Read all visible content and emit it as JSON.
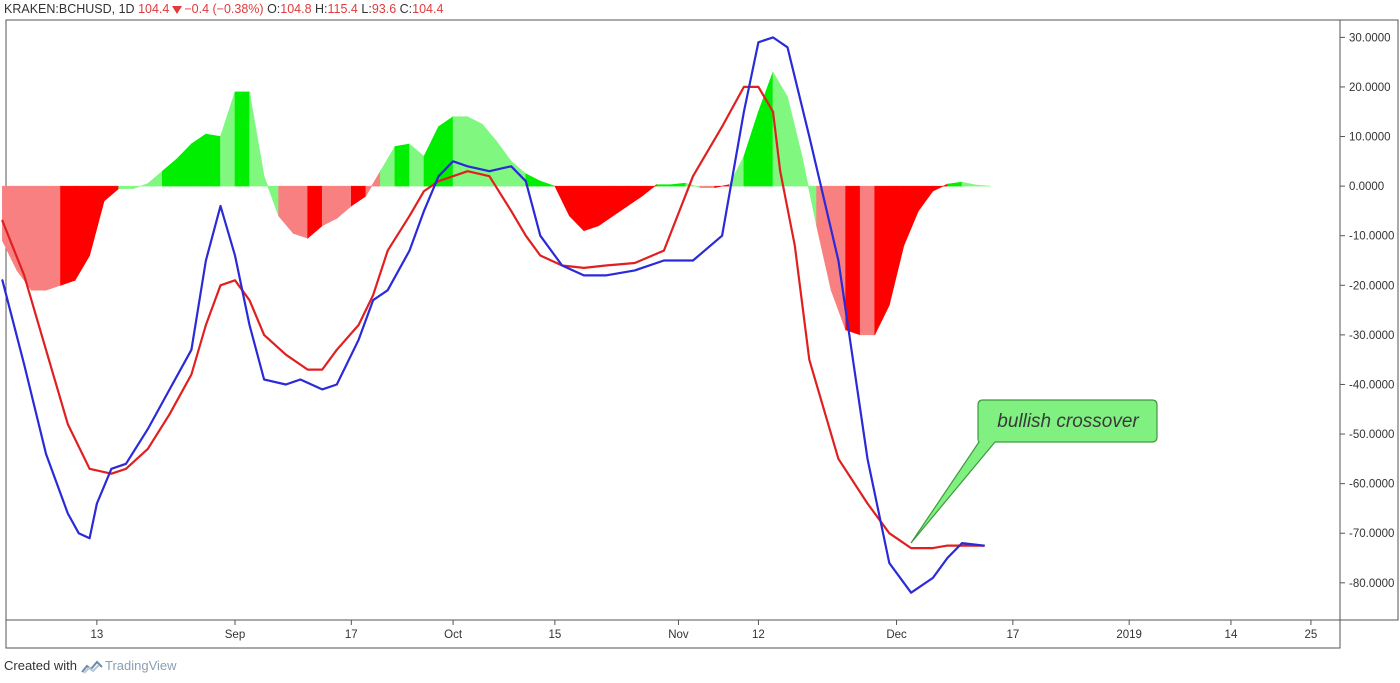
{
  "header": {
    "symbol": "KRAKEN:BCHUSD, 1D",
    "last": "104.4",
    "change": "−0.4 (−0.38%)",
    "o_label": "O:",
    "o_value": "104.8",
    "h_label": "H:",
    "h_value": "115.4",
    "l_label": "L:",
    "l_value": "93.6",
    "c_label": "C:",
    "c_value": "104.4"
  },
  "footer": {
    "created_with": "Created with",
    "brand": "TradingView"
  },
  "colors": {
    "macd_line": "#2a2ad8",
    "signal_line": "#e02020",
    "hist_up_strong": "#00ee00",
    "hist_up_weak": "#80f880",
    "hist_down_strong": "#ff0000",
    "hist_down_weak": "#f88080",
    "callout_fill": "#80f080",
    "callout_border": "#3c9a3c"
  },
  "annotation": {
    "text": "bullish crossover"
  },
  "chart_data": {
    "type": "line",
    "title": "",
    "xlabel": "",
    "ylabel": "",
    "ylim": [
      -87.5,
      33.5
    ],
    "grid": false,
    "y_ticks": [
      "30.0000",
      "20.0000",
      "10.0000",
      "0.0000",
      "-10.0000",
      "-20.0000",
      "-30.0000",
      "-40.0000",
      "-50.0000",
      "-60.0000",
      "-70.0000",
      "-80.0000"
    ],
    "y_tick_values": [
      30,
      20,
      10,
      0,
      -10,
      -20,
      -30,
      -40,
      -50,
      -60,
      -70,
      -80
    ],
    "x_ticks": [
      "13",
      "Sep",
      "17",
      "Oct",
      "15",
      "Nov",
      "12",
      "Dec",
      "17",
      "2019",
      "14",
      "25"
    ],
    "x_tick_days": [
      12,
      31,
      47,
      61,
      75,
      92,
      103,
      122,
      138,
      154,
      168,
      179
    ],
    "x_range_days": [
      -0.5,
      183
    ],
    "x_note": "x values are day offsets from Aug 1, 2018 (day 0 = Aug 1)",
    "series": [
      {
        "name": "",
        "role": "macd",
        "x": [
          -1,
          2,
          5,
          8,
          9.5,
          11,
          12,
          14,
          16,
          19,
          22,
          25,
          27,
          29,
          31,
          33,
          35,
          38,
          40,
          43,
          45,
          48,
          50,
          52,
          55,
          57,
          59,
          61,
          63,
          66,
          69,
          71,
          73,
          76,
          79,
          82,
          86,
          90,
          94,
          98,
          101,
          103,
          105,
          107,
          110,
          114,
          118,
          121,
          124,
          127,
          129,
          131,
          134
        ],
        "y": [
          -19,
          -36,
          -54,
          -66,
          -70,
          -71,
          -64,
          -57,
          -56,
          -49,
          -41,
          -33,
          -15,
          -4,
          -14,
          -28,
          -39,
          -40,
          -39,
          -41,
          -40,
          -31,
          -23,
          -21,
          -13,
          -5,
          2,
          5,
          4,
          3,
          4,
          1,
          -10,
          -16,
          -18,
          -18,
          -17,
          -15,
          -15,
          -10,
          15,
          29,
          30,
          28,
          10,
          -15,
          -55,
          -76,
          -82,
          -79,
          -75,
          -72,
          -72.5
        ]
      },
      {
        "name": "",
        "role": "signal",
        "x": [
          -1,
          2,
          5,
          8,
          11,
          14,
          16,
          19,
          22,
          25,
          27,
          29,
          31,
          33,
          35,
          38,
          41,
          43,
          45,
          48,
          50,
          52,
          55,
          57,
          59,
          61,
          63,
          66,
          69,
          71,
          73,
          76,
          79,
          82,
          86,
          90,
          94,
          98,
          101,
          103,
          105,
          106,
          108,
          110,
          114,
          118,
          121,
          124,
          127,
          129,
          131,
          134
        ],
        "y": [
          -7,
          -18,
          -33,
          -48,
          -57,
          -58,
          -57,
          -53,
          -46,
          -38,
          -28,
          -20,
          -19,
          -23,
          -30,
          -34,
          -37,
          -37,
          -33,
          -28,
          -22,
          -13,
          -6,
          -1,
          1,
          2,
          3,
          2,
          -5,
          -10,
          -14,
          -16,
          -16.5,
          -16,
          -15.5,
          -13,
          2,
          12,
          20,
          20,
          15,
          3,
          -12,
          -35,
          -55,
          -64,
          -70,
          -73,
          -73,
          -72.5,
          -72.5,
          -72.5
        ]
      },
      {
        "name": "",
        "role": "histogram",
        "x": [
          -1,
          1,
          3,
          5,
          7,
          9,
          11,
          13,
          15,
          17,
          19,
          21,
          23,
          25,
          27,
          29,
          31,
          33,
          35,
          37,
          39,
          41,
          43,
          45,
          47,
          49,
          51,
          53,
          55,
          57,
          59,
          61,
          63,
          65,
          67,
          69,
          71,
          73,
          75,
          77,
          79,
          81,
          83,
          85,
          87,
          89,
          91,
          93,
          95,
          97,
          99,
          101,
          103,
          105,
          107,
          109,
          111,
          113,
          115,
          117,
          119,
          121,
          123,
          125,
          127,
          129,
          131,
          133,
          135
        ],
        "y": [
          -11,
          -17,
          -21,
          -21,
          -20,
          -19,
          -14,
          -3,
          -0.5,
          -0.5,
          0.5,
          3,
          5.5,
          8.5,
          10.5,
          10,
          19,
          19,
          2,
          -6,
          -9.5,
          -10.5,
          -8,
          -6.5,
          -4,
          -2,
          3,
          8,
          8.5,
          6,
          12,
          14,
          14,
          12.5,
          9,
          5,
          2.5,
          1,
          0,
          -6,
          -9,
          -8,
          -6,
          -4,
          -2,
          0.3,
          0.3,
          0.6,
          -0.3,
          -0.3,
          0.3,
          6,
          15,
          23,
          18,
          6,
          -8,
          -21,
          -29,
          -30,
          -30,
          -24,
          -12,
          -5,
          -1,
          0.4,
          0.8,
          0.2,
          0
        ],
        "shade": [
          "dw",
          "dw",
          "dw",
          "dw",
          "ds",
          "ds",
          "ds",
          "ds",
          "uw",
          "uw",
          "uw",
          "us",
          "us",
          "us",
          "us",
          "uw",
          "us",
          "uw",
          "uw",
          "dw",
          "dw",
          "ds",
          "dw",
          "dw",
          "ds",
          "dw",
          "uw",
          "us",
          "uw",
          "us",
          "us",
          "uw",
          "uw",
          "uw",
          "uw",
          "uw",
          "us",
          "us",
          "ds",
          "ds",
          "ds",
          "ds",
          "ds",
          "ds",
          "ds",
          "us",
          "us",
          "uw",
          "dw",
          "ds",
          "uw",
          "us",
          "us",
          "uw",
          "uw",
          "uw",
          "dw",
          "dw",
          "ds",
          "dw",
          "ds",
          "ds",
          "ds",
          "ds",
          "ds",
          "us",
          "uw",
          "uw",
          "uw"
        ]
      }
    ]
  }
}
